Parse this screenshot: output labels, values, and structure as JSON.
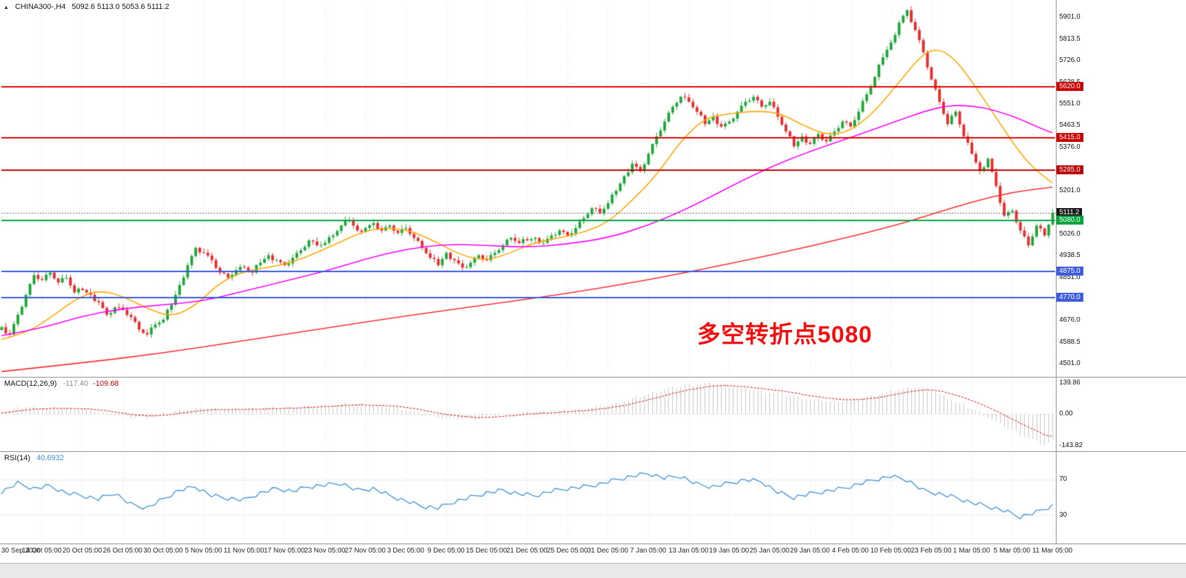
{
  "header": {
    "symbol_tf": "CHINA300-,H4",
    "ohlc_line": "5092.6 5113.0 5053.6 5111.2"
  },
  "annotation": {
    "text": "多空转折点5080",
    "color": "#f01010"
  },
  "macd_panel": {
    "title": "MACD(12,26,9)",
    "value_main": "-117.40",
    "value_signal": "-109.68"
  },
  "rsi_panel": {
    "title": "RSI(14)",
    "value": "40.6932"
  },
  "colors": {
    "up": "#21a63c",
    "down": "#e33030",
    "ma_fast": "#ffa500",
    "ma_mid": "#ff00ff",
    "ma_slow": "#ff2a2a",
    "macd_hist": "#c6c6c6",
    "macd_signal": "#e00000",
    "rsi_line": "#3b8fd4",
    "grid": "#e4e4e4",
    "axis_text": "#111111"
  },
  "chart_data": [
    {
      "type": "candlestick",
      "title": "CHINA300-,H4",
      "ylim": [
        4460,
        5960
      ],
      "y_ticks": [
        "5901.0",
        "5813.5",
        "5726.0",
        "5638.5",
        "5551.0",
        "5463.5",
        "5376.0",
        "5288.5",
        "5201.0",
        "5113.5",
        "5026.0",
        "4938.5",
        "4851.0",
        "4763.5",
        "4676.0",
        "4588.5",
        "4501.0"
      ],
      "x_labels": [
        "30 Sep 2020",
        "14 Oct 05:00",
        "20 Oct 05:00",
        "26 Oct 05:00",
        "30 Oct 05:00",
        "5 Nov 05:00",
        "11 Nov 05:00",
        "17 Nov 05:00",
        "23 Nov 05:00",
        "27 Nov 05:00",
        "3 Dec 05:00",
        "9 Dec 05:00",
        "15 Dec 05:00",
        "21 Dec 05:00",
        "25 Dec 05:00",
        "31 Dec 05:00",
        "7 Jan 05:00",
        "13 Jan 05:00",
        "19 Jan 05:00",
        "25 Jan 05:00",
        "29 Jan 05:00",
        "4 Feb 05:00",
        "10 Feb 05:00",
        "23 Feb 05:00",
        "1 Mar 05:00",
        "5 Mar 05:00",
        "11 Mar 05:00"
      ],
      "closes": [
        4650,
        4620,
        4700,
        4780,
        4860,
        4840,
        4870,
        4830,
        4850,
        4790,
        4800,
        4780,
        4750,
        4700,
        4730,
        4720,
        4690,
        4640,
        4620,
        4660,
        4680,
        4740,
        4820,
        4900,
        4970,
        4950,
        4920,
        4870,
        4850,
        4880,
        4890,
        4870,
        4910,
        4940,
        4920,
        4900,
        4930,
        4960,
        5000,
        4980,
        4990,
        5020,
        5060,
        5080,
        5040,
        5050,
        5070,
        5040,
        5060,
        5030,
        5050,
        5010,
        4970,
        4930,
        4900,
        4950,
        4920,
        4890,
        4910,
        4940,
        4920,
        4950,
        4980,
        5010,
        4990,
        5000,
        5010,
        4990,
        5020,
        5040,
        5020,
        5050,
        5090,
        5130,
        5110,
        5150,
        5200,
        5260,
        5310,
        5280,
        5350,
        5420,
        5480,
        5540,
        5580,
        5560,
        5520,
        5470,
        5500,
        5460,
        5480,
        5520,
        5560,
        5580,
        5540,
        5560,
        5500,
        5440,
        5380,
        5420,
        5390,
        5430,
        5400,
        5440,
        5480,
        5460,
        5520,
        5590,
        5660,
        5740,
        5800,
        5880,
        5930,
        5850,
        5760,
        5650,
        5560,
        5470,
        5520,
        5420,
        5350,
        5280,
        5330,
        5220,
        5100,
        5120,
        5040,
        4980,
        5060,
        5020,
        5111.2
      ],
      "last_candle_ohlc": {
        "open": 5092.6,
        "high": 5113.0,
        "low": 5053.6,
        "close": 5111.2
      },
      "horizontal_lines": [
        {
          "price": 5620.0,
          "label": "5620.0",
          "color": "#dd0000",
          "width": 2,
          "style": "solid",
          "badge_color": "#cc0000"
        },
        {
          "price": 5415.0,
          "label": "5415.0",
          "color": "#dd0000",
          "width": 2,
          "style": "solid",
          "badge_color": "#cc0000"
        },
        {
          "price": 5285.0,
          "label": "5285.0",
          "color": "#bb0000",
          "width": 2,
          "style": "solid",
          "badge_color": "#bb0000"
        },
        {
          "price": 5111.2,
          "label": "5111.2",
          "color": "#555555",
          "width": 1,
          "style": "dotted",
          "badge_color": "#1a1a1a",
          "role": "current-price"
        },
        {
          "price": 5080.0,
          "label": "5080.0",
          "color": "#00a03c",
          "width": 2,
          "style": "solid",
          "badge_color": "#00a53c"
        },
        {
          "price": 4875.0,
          "label": "4875.0",
          "color": "#3355dd",
          "width": 2,
          "style": "solid",
          "badge_color": "#3f5bdf"
        },
        {
          "price": 4770.0,
          "label": "4770.0",
          "color": "#3355dd",
          "width": 2,
          "style": "solid",
          "badge_color": "#3f5bdf"
        }
      ],
      "moving_averages": [
        {
          "name": "ma-fast-orange",
          "color": "#ffa500",
          "points": [
            [
              0,
              4600
            ],
            [
              3,
              4625
            ],
            [
              6,
              4685
            ],
            [
              9,
              4760
            ],
            [
              12,
              4800
            ],
            [
              15,
              4775
            ],
            [
              18,
              4725
            ],
            [
              21,
              4690
            ],
            [
              24,
              4735
            ],
            [
              27,
              4830
            ],
            [
              30,
              4875
            ],
            [
              33,
              4890
            ],
            [
              36,
              4912
            ],
            [
              39,
              4950
            ],
            [
              42,
              4995
            ],
            [
              45,
              5040
            ],
            [
              48,
              5052
            ],
            [
              51,
              5035
            ],
            [
              54,
              4990
            ],
            [
              57,
              4938
            ],
            [
              60,
              4918
            ],
            [
              63,
              4950
            ],
            [
              66,
              4992
            ],
            [
              69,
              5010
            ],
            [
              72,
              5032
            ],
            [
              75,
              5072
            ],
            [
              78,
              5160
            ],
            [
              81,
              5262
            ],
            [
              84,
              5400
            ],
            [
              87,
              5495
            ],
            [
              90,
              5512
            ],
            [
              93,
              5522
            ],
            [
              96,
              5518
            ],
            [
              99,
              5468
            ],
            [
              102,
              5425
            ],
            [
              105,
              5440
            ],
            [
              108,
              5520
            ],
            [
              111,
              5638
            ],
            [
              114,
              5755
            ],
            [
              116,
              5775
            ],
            [
              118,
              5730
            ],
            [
              120,
              5645
            ],
            [
              123,
              5498
            ],
            [
              126,
              5352
            ],
            [
              128,
              5282
            ],
            [
              130,
              5232
            ]
          ]
        },
        {
          "name": "ma-mid-magenta",
          "color": "#ff00ff",
          "points": [
            [
              0,
              4615
            ],
            [
              5,
              4645
            ],
            [
              10,
              4695
            ],
            [
              15,
              4725
            ],
            [
              20,
              4740
            ],
            [
              25,
              4755
            ],
            [
              30,
              4795
            ],
            [
              35,
              4835
            ],
            [
              40,
              4875
            ],
            [
              45,
              4925
            ],
            [
              50,
              4965
            ],
            [
              55,
              4985
            ],
            [
              60,
              4980
            ],
            [
              65,
              4972
            ],
            [
              70,
              4985
            ],
            [
              75,
              5010
            ],
            [
              80,
              5060
            ],
            [
              85,
              5130
            ],
            [
              90,
              5215
            ],
            [
              95,
              5295
            ],
            [
              100,
              5360
            ],
            [
              105,
              5415
            ],
            [
              108,
              5450
            ],
            [
              111,
              5485
            ],
            [
              114,
              5520
            ],
            [
              117,
              5545
            ],
            [
              120,
              5545
            ],
            [
              123,
              5525
            ],
            [
              126,
              5490
            ],
            [
              128,
              5460
            ],
            [
              130,
              5435
            ]
          ]
        },
        {
          "name": "ma-slow-red",
          "color": "#ff2a2a",
          "points": [
            [
              0,
              4470
            ],
            [
              10,
              4505
            ],
            [
              20,
              4545
            ],
            [
              30,
              4595
            ],
            [
              40,
              4645
            ],
            [
              50,
              4695
            ],
            [
              60,
              4740
            ],
            [
              70,
              4785
            ],
            [
              80,
              4840
            ],
            [
              90,
              4905
            ],
            [
              100,
              4975
            ],
            [
              110,
              5055
            ],
            [
              115,
              5105
            ],
            [
              120,
              5155
            ],
            [
              125,
              5195
            ],
            [
              130,
              5215
            ]
          ]
        }
      ]
    },
    {
      "type": "bar",
      "name": "MACD(12,26,9)",
      "ylim": [
        -160,
        160
      ],
      "y_ticks": [
        "139.86",
        "0.00",
        "-143.82"
      ],
      "y_tick_values": [
        139.86,
        0,
        -143.82
      ],
      "current_main": -117.4,
      "current_signal": -109.68,
      "points": [
        [
          0,
          12
        ],
        [
          3,
          32
        ],
        [
          6,
          28
        ],
        [
          10,
          22
        ],
        [
          13,
          2
        ],
        [
          16,
          -18
        ],
        [
          19,
          -8
        ],
        [
          22,
          18
        ],
        [
          25,
          28
        ],
        [
          28,
          20
        ],
        [
          31,
          24
        ],
        [
          34,
          28
        ],
        [
          37,
          32
        ],
        [
          40,
          40
        ],
        [
          43,
          46
        ],
        [
          46,
          38
        ],
        [
          49,
          28
        ],
        [
          52,
          -2
        ],
        [
          55,
          -18
        ],
        [
          58,
          -24
        ],
        [
          61,
          -8
        ],
        [
          64,
          6
        ],
        [
          67,
          10
        ],
        [
          70,
          16
        ],
        [
          73,
          28
        ],
        [
          76,
          48
        ],
        [
          79,
          80
        ],
        [
          82,
          112
        ],
        [
          85,
          132
        ],
        [
          88,
          139.86
        ],
        [
          90,
          128
        ],
        [
          93,
          108
        ],
        [
          96,
          96
        ],
        [
          99,
          72
        ],
        [
          102,
          58
        ],
        [
          105,
          62
        ],
        [
          108,
          86
        ],
        [
          111,
          112
        ],
        [
          113,
          124
        ],
        [
          115,
          108
        ],
        [
          117,
          72
        ],
        [
          119,
          40
        ],
        [
          121,
          8
        ],
        [
          123,
          -36
        ],
        [
          125,
          -76
        ],
        [
          127,
          -108
        ],
        [
          129,
          -143.82
        ],
        [
          130,
          -117.4
        ]
      ]
    },
    {
      "type": "line",
      "name": "RSI(14)",
      "ylim": [
        0,
        100
      ],
      "levels": [
        70,
        30
      ],
      "level_labels": [
        "70",
        "30"
      ],
      "current": 40.6932,
      "points": [
        [
          0,
          56
        ],
        [
          2,
          66
        ],
        [
          4,
          60
        ],
        [
          6,
          63
        ],
        [
          8,
          55
        ],
        [
          10,
          52
        ],
        [
          12,
          48
        ],
        [
          14,
          55
        ],
        [
          16,
          42
        ],
        [
          18,
          38
        ],
        [
          20,
          48
        ],
        [
          22,
          58
        ],
        [
          24,
          62
        ],
        [
          26,
          52
        ],
        [
          28,
          49
        ],
        [
          30,
          47
        ],
        [
          32,
          55
        ],
        [
          34,
          60
        ],
        [
          36,
          57
        ],
        [
          38,
          62
        ],
        [
          40,
          64
        ],
        [
          42,
          66
        ],
        [
          44,
          58
        ],
        [
          46,
          60
        ],
        [
          48,
          52
        ],
        [
          50,
          46
        ],
        [
          52,
          40
        ],
        [
          54,
          38
        ],
        [
          56,
          45
        ],
        [
          58,
          50
        ],
        [
          60,
          55
        ],
        [
          62,
          58
        ],
        [
          64,
          54
        ],
        [
          66,
          52
        ],
        [
          68,
          57
        ],
        [
          70,
          60
        ],
        [
          72,
          62
        ],
        [
          74,
          65
        ],
        [
          76,
          70
        ],
        [
          78,
          74
        ],
        [
          80,
          77
        ],
        [
          82,
          72
        ],
        [
          84,
          74
        ],
        [
          86,
          65
        ],
        [
          88,
          62
        ],
        [
          90,
          66
        ],
        [
          92,
          70
        ],
        [
          94,
          68
        ],
        [
          96,
          56
        ],
        [
          98,
          50
        ],
        [
          100,
          54
        ],
        [
          102,
          57
        ],
        [
          104,
          60
        ],
        [
          106,
          65
        ],
        [
          108,
          70
        ],
        [
          110,
          74
        ],
        [
          112,
          70
        ],
        [
          114,
          58
        ],
        [
          116,
          54
        ],
        [
          118,
          50
        ],
        [
          120,
          44
        ],
        [
          122,
          40
        ],
        [
          124,
          35
        ],
        [
          126,
          28
        ],
        [
          128,
          33
        ],
        [
          130,
          40.6932
        ]
      ]
    }
  ]
}
